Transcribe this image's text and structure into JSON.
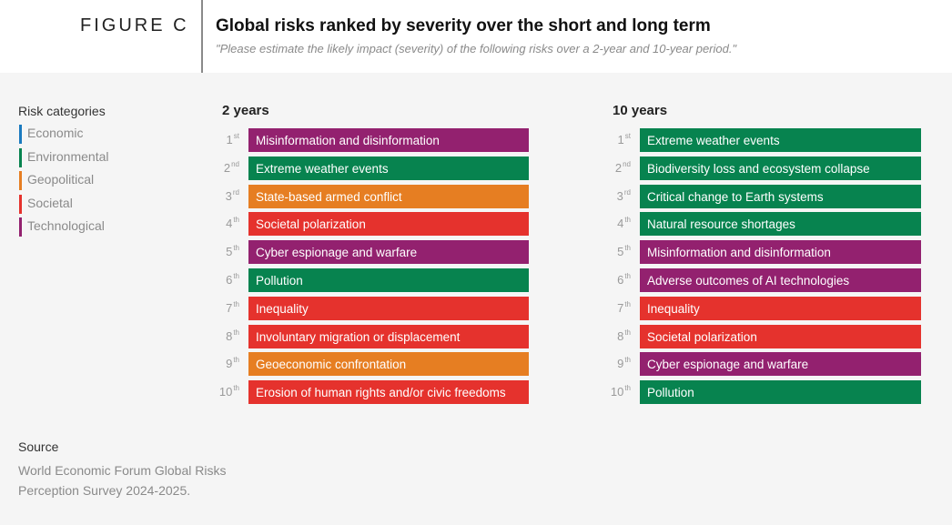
{
  "header": {
    "figure_label": "FIGURE C",
    "title": "Global risks ranked by severity over the short and long term",
    "subtitle": "\"Please estimate the likely impact (severity) of the following risks over a 2-year and 10-year period.\""
  },
  "legend": {
    "title": "Risk categories",
    "items": [
      {
        "label": "Economic",
        "color": "#1a7abf"
      },
      {
        "label": "Environmental",
        "color": "#07834f"
      },
      {
        "label": "Geopolitical",
        "color": "#e67e22"
      },
      {
        "label": "Societal",
        "color": "#e5322d"
      },
      {
        "label": "Technological",
        "color": "#93216f"
      }
    ]
  },
  "chart_data": {
    "type": "table",
    "title": "Global risks ranked by severity over the short and long term",
    "category_colors": {
      "Economic": "#1a7abf",
      "Environmental": "#07834f",
      "Geopolitical": "#e67e22",
      "Societal": "#e5322d",
      "Technological": "#93216f"
    },
    "columns": [
      {
        "title": "2 years",
        "rows": [
          {
            "rank": "1",
            "suffix": "st",
            "risk": "Misinformation and disinformation",
            "category": "Technological"
          },
          {
            "rank": "2",
            "suffix": "nd",
            "risk": "Extreme weather events",
            "category": "Environmental"
          },
          {
            "rank": "3",
            "suffix": "rd",
            "risk": "State-based armed conflict",
            "category": "Geopolitical"
          },
          {
            "rank": "4",
            "suffix": "th",
            "risk": "Societal polarization",
            "category": "Societal"
          },
          {
            "rank": "5",
            "suffix": "th",
            "risk": "Cyber espionage and warfare",
            "category": "Technological"
          },
          {
            "rank": "6",
            "suffix": "th",
            "risk": "Pollution",
            "category": "Environmental"
          },
          {
            "rank": "7",
            "suffix": "th",
            "risk": "Inequality",
            "category": "Societal"
          },
          {
            "rank": "8",
            "suffix": "th",
            "risk": "Involuntary migration or displacement",
            "category": "Societal"
          },
          {
            "rank": "9",
            "suffix": "th",
            "risk": "Geoeconomic confrontation",
            "category": "Geopolitical"
          },
          {
            "rank": "10",
            "suffix": "th",
            "risk": "Erosion of human rights and/or civic freedoms",
            "category": "Societal"
          }
        ]
      },
      {
        "title": "10 years",
        "rows": [
          {
            "rank": "1",
            "suffix": "st",
            "risk": "Extreme weather events",
            "category": "Environmental"
          },
          {
            "rank": "2",
            "suffix": "nd",
            "risk": "Biodiversity loss and ecosystem collapse",
            "category": "Environmental"
          },
          {
            "rank": "3",
            "suffix": "rd",
            "risk": "Critical change to Earth systems",
            "category": "Environmental"
          },
          {
            "rank": "4",
            "suffix": "th",
            "risk": "Natural resource shortages",
            "category": "Environmental"
          },
          {
            "rank": "5",
            "suffix": "th",
            "risk": "Misinformation and disinformation",
            "category": "Technological"
          },
          {
            "rank": "6",
            "suffix": "th",
            "risk": "Adverse outcomes of AI technologies",
            "category": "Technological"
          },
          {
            "rank": "7",
            "suffix": "th",
            "risk": "Inequality",
            "category": "Societal"
          },
          {
            "rank": "8",
            "suffix": "th",
            "risk": "Societal polarization",
            "category": "Societal"
          },
          {
            "rank": "9",
            "suffix": "th",
            "risk": "Cyber espionage and warfare",
            "category": "Technological"
          },
          {
            "rank": "10",
            "suffix": "th",
            "risk": "Pollution",
            "category": "Environmental"
          }
        ]
      }
    ]
  },
  "source": {
    "title": "Source",
    "text_line1": "World Economic Forum Global Risks",
    "text_line2": "Perception Survey 2024-2025."
  }
}
